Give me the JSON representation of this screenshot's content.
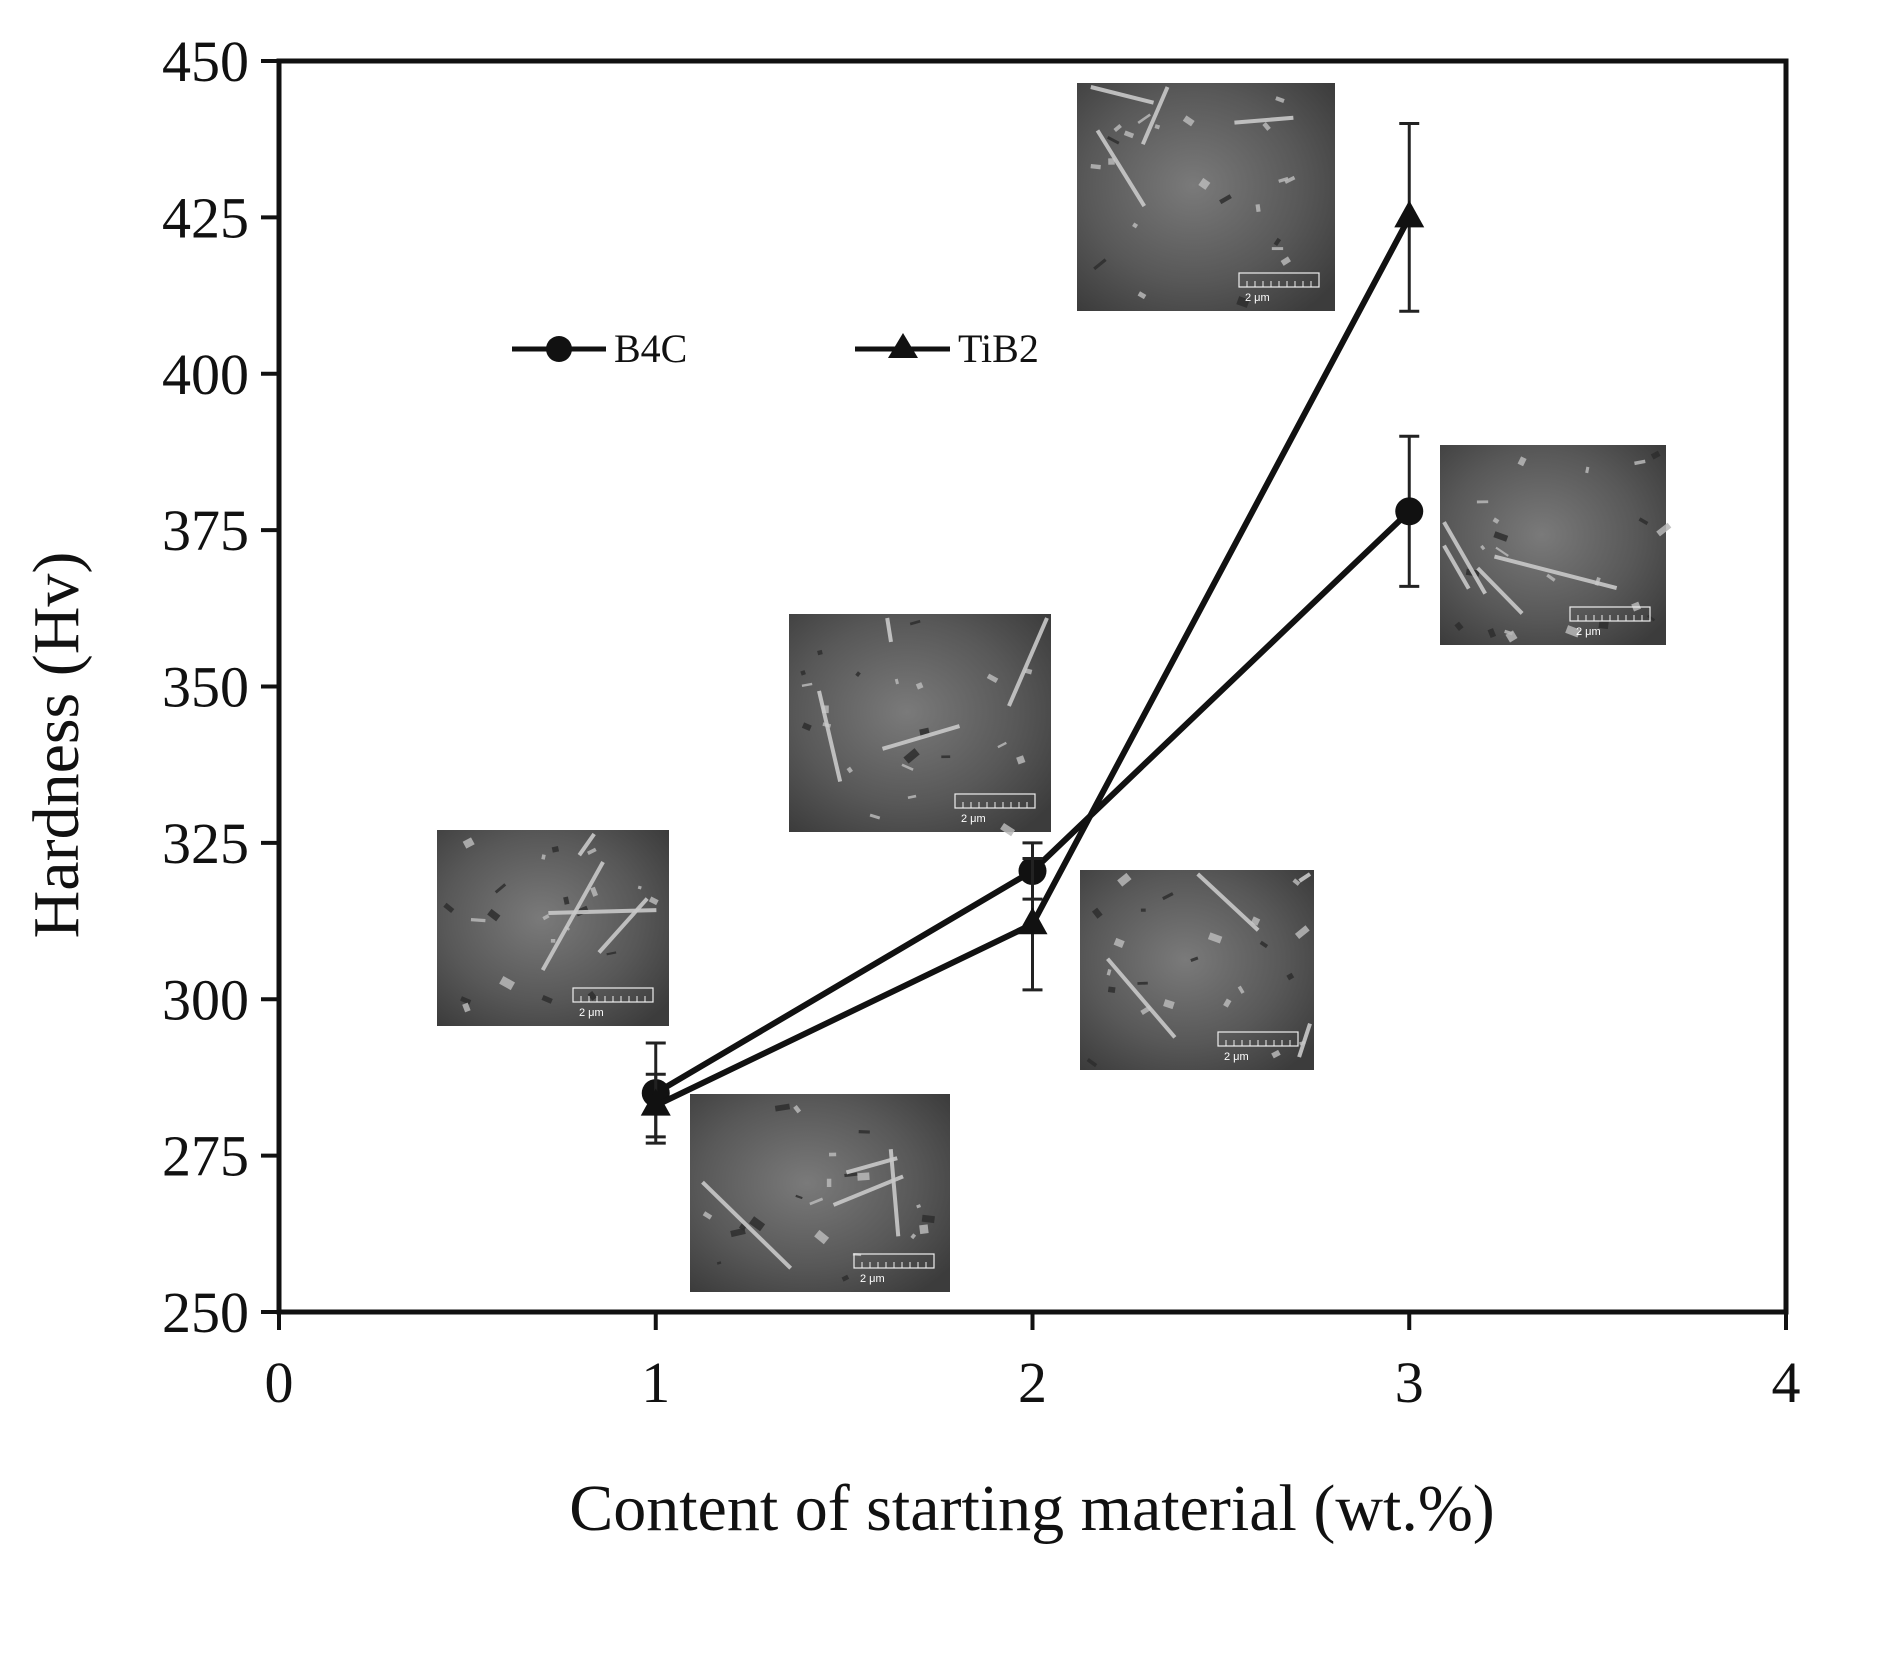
{
  "chart_data": {
    "type": "line",
    "xlabel": "Content of starting material (wt.%)",
    "ylabel": "Hardness (Hv)",
    "xlim": [
      0,
      4
    ],
    "ylim": [
      250,
      450
    ],
    "xticks": [
      "0",
      "1",
      "2",
      "3",
      "4"
    ],
    "yticks": [
      "250",
      "275",
      "300",
      "325",
      "350",
      "375",
      "400",
      "425",
      "450"
    ],
    "grid": false,
    "legend_position": "upper-left",
    "series": [
      {
        "name": "B4C",
        "marker": "circle",
        "x": [
          1,
          2,
          3
        ],
        "y": [
          285,
          320.5,
          378
        ],
        "error": [
          8,
          4.5,
          12
        ]
      },
      {
        "name": "TiB2",
        "marker": "triangle",
        "x": [
          1,
          2,
          3
        ],
        "y": [
          283,
          312,
          425
        ],
        "error": [
          5,
          10.5,
          15
        ]
      }
    ],
    "inset_images": [
      {
        "name": "sem-b4c-1wt",
        "scale_label": "2 μm"
      },
      {
        "name": "sem-tib2-1wt",
        "scale_label": "2 μm"
      },
      {
        "name": "sem-b4c-2wt",
        "scale_label": "2 μm"
      },
      {
        "name": "sem-tib2-2wt",
        "scale_label": "2 μm"
      },
      {
        "name": "sem-tib2-3wt",
        "scale_label": "2 μm"
      },
      {
        "name": "sem-b4c-3wt",
        "scale_label": "2 μm"
      }
    ],
    "colors": {
      "line": "#111111",
      "axis": "#111111",
      "sem_dark": "#4a4a4a",
      "sem_light": "#bdbdbd"
    }
  }
}
